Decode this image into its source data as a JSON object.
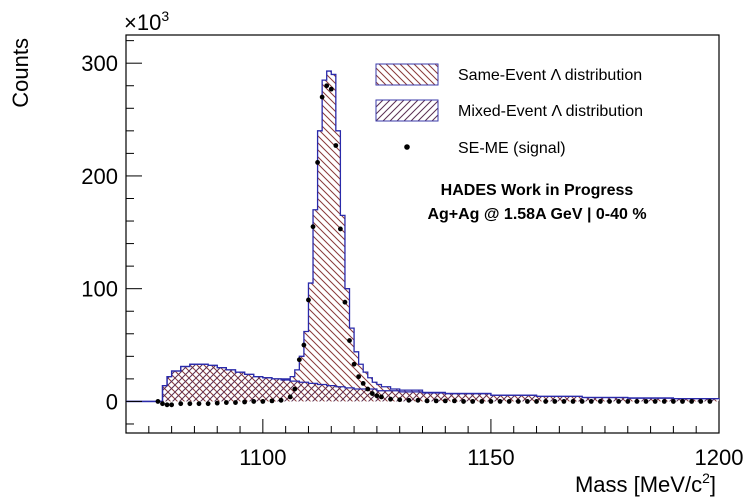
{
  "chart_data": {
    "type": "histogram",
    "title": "",
    "xlabel": "Mass [MeV/c",
    "xlabel_sup": "2",
    "xlabel_end": "]",
    "ylabel": "Counts",
    "exponent_label": "×10",
    "exponent_sup": "3",
    "xlim": [
      1070,
      1200
    ],
    "ylim": [
      -28,
      325
    ],
    "x_ticks": [
      1100,
      1150,
      1200
    ],
    "y_ticks": [
      0,
      100,
      200,
      300
    ],
    "x_tick_labels": [
      "1100",
      "1150",
      "1200"
    ],
    "y_tick_labels": [
      "0",
      "100",
      "200",
      "300"
    ],
    "grid": false,
    "legend_placement": "top-right",
    "legend": [
      {
        "label": "Same-Event Λ distribution",
        "style": "hatch-backslash"
      },
      {
        "label": "Mixed-Event Λ distribution",
        "style": "hatch-cross"
      },
      {
        "label": "SE-ME (signal)",
        "style": "marker"
      }
    ],
    "annotations": [
      "HADES Work in Progress",
      "Ag+Ag @ 1.58A GeV | 0-40 %"
    ],
    "series": [
      {
        "name": "Same-Event Λ distribution",
        "kind": "step",
        "x": [
          1070,
          1077,
          1078,
          1079,
          1080,
          1082,
          1084,
          1086,
          1088,
          1090,
          1092,
          1094,
          1096,
          1098,
          1100,
          1102,
          1104,
          1106,
          1107,
          1108,
          1109,
          1110,
          1111,
          1112,
          1113,
          1114,
          1115,
          1116,
          1117,
          1118,
          1119,
          1120,
          1121,
          1122,
          1123,
          1124,
          1125,
          1126,
          1128,
          1130,
          1135,
          1140,
          1150,
          1160,
          1170,
          1180,
          1190,
          1200
        ],
        "y": [
          0,
          0,
          14,
          22,
          27,
          31,
          33,
          33,
          32,
          30,
          28,
          26,
          24,
          22,
          21,
          20,
          20,
          22,
          28,
          40,
          62,
          105,
          170,
          240,
          285,
          293,
          290,
          240,
          165,
          100,
          65,
          44,
          33,
          26,
          21,
          17,
          15,
          13,
          11,
          10,
          8,
          7,
          5.5,
          4.5,
          3.5,
          3,
          2.5,
          2
        ]
      },
      {
        "name": "Mixed-Event Λ distribution",
        "kind": "step",
        "x": [
          1070,
          1077,
          1078,
          1079,
          1080,
          1082,
          1084,
          1086,
          1088,
          1090,
          1092,
          1094,
          1096,
          1098,
          1100,
          1102,
          1104,
          1106,
          1108,
          1110,
          1112,
          1114,
          1116,
          1118,
          1120,
          1125,
          1130,
          1135,
          1140,
          1150,
          1160,
          1170,
          1180,
          1190,
          1200
        ],
        "y": [
          0,
          0,
          14,
          22,
          27,
          31,
          33,
          33,
          32,
          30,
          28,
          26,
          24,
          22,
          21,
          20,
          19,
          18,
          17,
          16,
          15,
          14,
          13,
          12,
          11,
          9.5,
          8.5,
          7.5,
          7,
          5.5,
          4.5,
          3.5,
          3,
          2.5,
          2
        ]
      },
      {
        "name": "SE-ME (signal)",
        "kind": "points",
        "x": [
          1077,
          1078,
          1079,
          1080,
          1082,
          1084,
          1086,
          1088,
          1090,
          1092,
          1094,
          1096,
          1098,
          1100,
          1102,
          1104,
          1106,
          1107,
          1108,
          1109,
          1110,
          1111,
          1112,
          1113,
          1114,
          1115,
          1116,
          1117,
          1118,
          1119,
          1120,
          1121,
          1122,
          1123,
          1124,
          1125,
          1126,
          1128,
          1130,
          1132,
          1134,
          1136,
          1138,
          1140,
          1142,
          1144,
          1146,
          1148,
          1150,
          1152,
          1154,
          1156,
          1158,
          1160,
          1162,
          1164,
          1166,
          1168,
          1170,
          1172,
          1174,
          1176,
          1178,
          1180,
          1182,
          1184,
          1186,
          1188,
          1190,
          1192,
          1194,
          1196,
          1198
        ],
        "y": [
          0,
          -2,
          -3,
          -3,
          -2,
          -2,
          -2,
          -2,
          -1.5,
          -1,
          -1,
          -0.5,
          0,
          0,
          0.5,
          1,
          4,
          11,
          37,
          50,
          90,
          155,
          212,
          270,
          280,
          277,
          227,
          153,
          88,
          54,
          33,
          22,
          16,
          11,
          7,
          5,
          4,
          2,
          1.5,
          1,
          1,
          0.5,
          0.5,
          0.5,
          0.5,
          0,
          0,
          0,
          0,
          0,
          0,
          0,
          0,
          0,
          0,
          0,
          0,
          0,
          0,
          0,
          0,
          0,
          0,
          0,
          0,
          0,
          0,
          0,
          0,
          0,
          0,
          0,
          0
        ]
      }
    ]
  }
}
